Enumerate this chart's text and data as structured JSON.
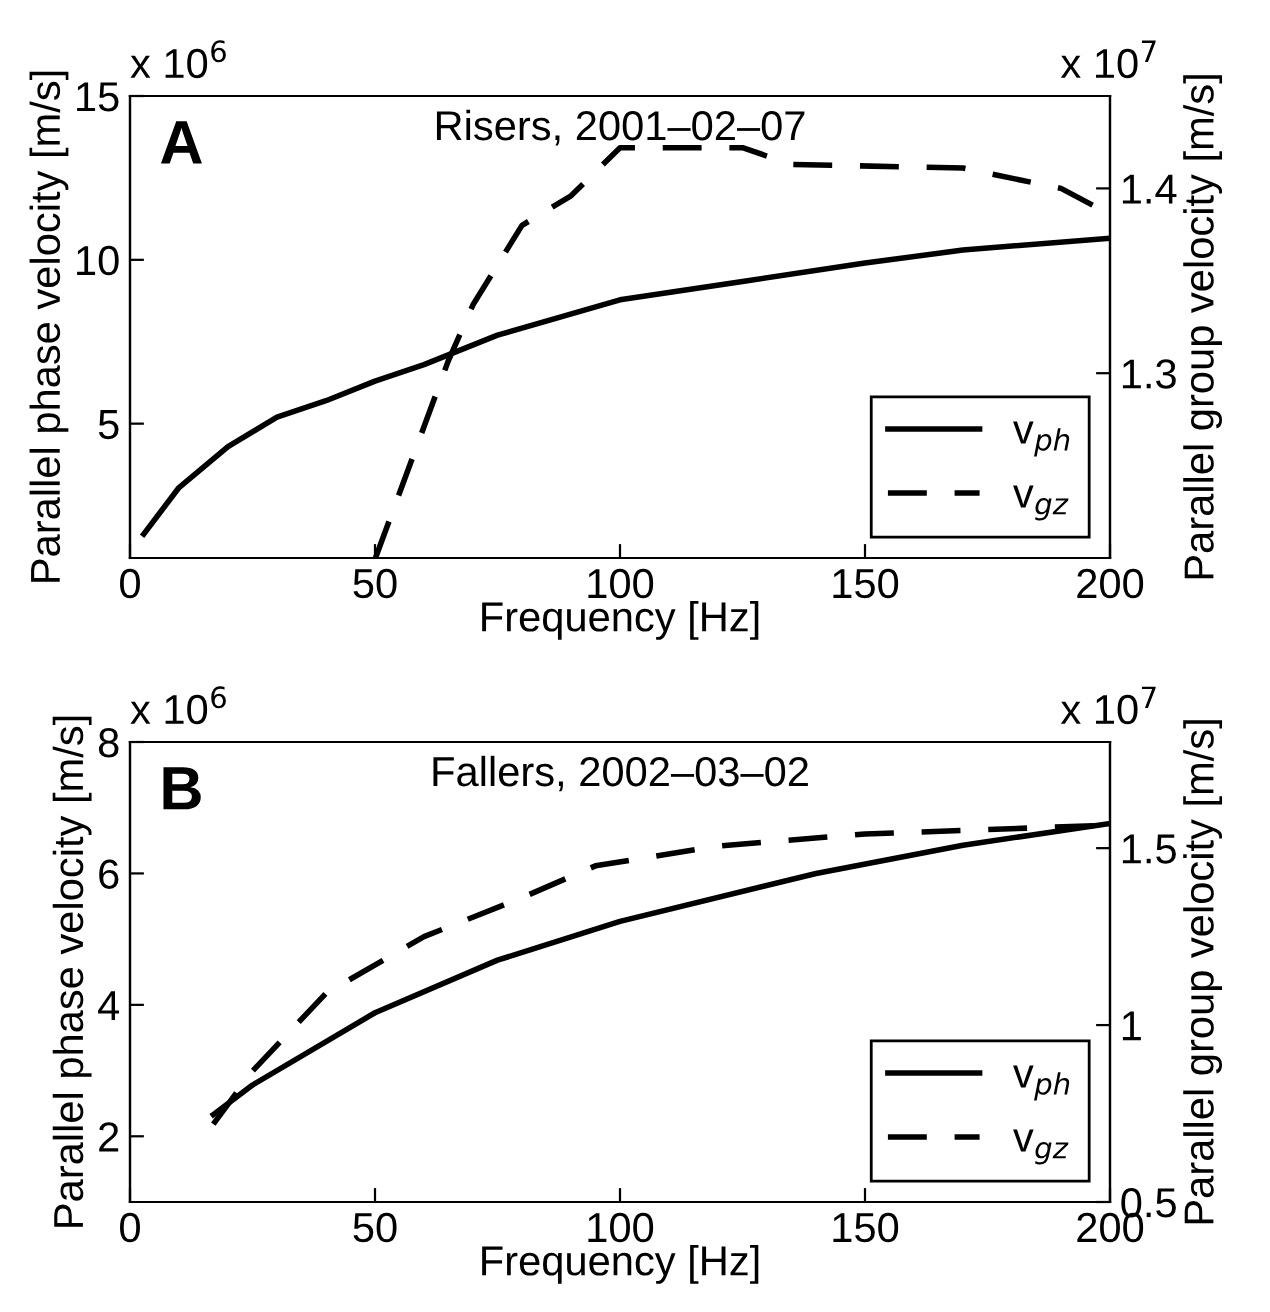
{
  "chart_data": [
    {
      "type": "line",
      "title": "Risers, 2001–02–07",
      "xlabel": "Frequency [Hz]",
      "ylabel": "Parallel phase velocity [m/s]",
      "y2label": "Parallel group velocity [m/s]",
      "annotations": [
        "A",
        "x 10$^{6}$",
        "x 10$^{7}$"
      ],
      "xlim": [
        0,
        200
      ],
      "xticks": [
        0,
        50,
        100,
        150,
        200
      ],
      "ylim": [
        0.9,
        15
      ],
      "yticks": [
        5,
        10,
        15
      ],
      "y2lim": [
        1.2,
        1.45
      ],
      "y2ticks": [
        1.3,
        1.4
      ],
      "grid": false,
      "legend": "bottom right",
      "series": [
        {
          "name": "v$_{ph}$",
          "color": "#000000",
          "line_style": "solid",
          "x": [
            2.8,
            10,
            20,
            30,
            40,
            50,
            60,
            75,
            100,
            125,
            150,
            170,
            200
          ],
          "values": [
            1.63,
            3.05,
            4.3,
            5.2,
            5.7,
            6.3,
            6.8,
            7.7,
            8.78,
            9.34,
            9.9,
            10.3,
            10.66
          ]
        },
        {
          "name": "v$_{gz}$",
          "color": "#000000",
          "line_style": "dashed",
          "axis": "y2",
          "x": [
            50.1,
            65,
            70,
            80,
            90,
            100,
            125,
            135,
            170,
            190,
            200
          ],
          "values": [
            1.2,
            1.307,
            1.337,
            1.38,
            1.396,
            1.422,
            1.422,
            1.413,
            1.411,
            1.4,
            1.386
          ]
        }
      ]
    },
    {
      "type": "line",
      "title": "Fallers, 2002–03–02",
      "xlabel": "Frequency [Hz]",
      "ylabel": "Parallel phase velocity [m/s]",
      "y2label": "Parallel group velocity [m/s]",
      "annotations": [
        "B",
        "x 10$^{6}$",
        "x 10$^{7}$"
      ],
      "xlim": [
        0,
        200
      ],
      "xticks": [
        0,
        50,
        100,
        150,
        200
      ],
      "ylim": [
        1,
        8
      ],
      "yticks": [
        2,
        4,
        6,
        8
      ],
      "y2lim": [
        0.5,
        1.8
      ],
      "y2ticks": [
        0.5,
        1,
        1.5
      ],
      "grid": false,
      "legend": "bottom right",
      "series": [
        {
          "name": "v$_{ph}$",
          "color": "#000000",
          "line_style": "solid",
          "x": [
            17,
            25,
            50,
            75,
            100,
            140,
            170,
            200
          ],
          "values": [
            2.33,
            2.78,
            3.88,
            4.68,
            5.27,
            6.0,
            6.43,
            6.76
          ]
        },
        {
          "name": "v$_{gz}$",
          "color": "#000000",
          "line_style": "dashed",
          "axis": "y2",
          "x": [
            17,
            25,
            40,
            60,
            80,
            95,
            120,
            150,
            200
          ],
          "values": [
            0.72,
            0.87,
            1.09,
            1.25,
            1.36,
            1.45,
            1.506,
            1.54,
            1.565
          ]
        }
      ]
    }
  ]
}
